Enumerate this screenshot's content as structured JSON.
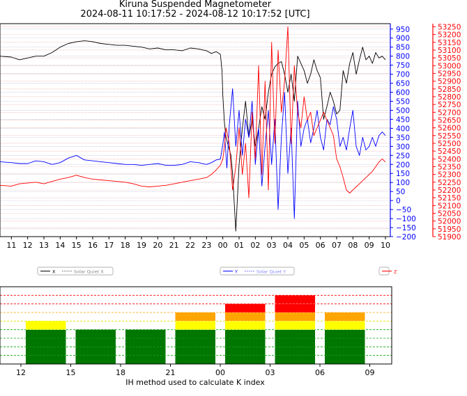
{
  "header": {
    "title": "Kiruna Suspended Magnetometer",
    "subtitle": "2024-08-11 10:17:52 - 2024-08-12 10:17:52 [UTC]"
  },
  "colors": {
    "x_series": "#000000",
    "y_series": "#0000ff",
    "z_series": "#ff0000",
    "k_green": "#007700",
    "k_yellow": "#ffff00",
    "k_orange": "#ffa500",
    "k_red": "#ff0000"
  },
  "chart_data": [
    {
      "type": "line",
      "x_ticks": [
        "11",
        "12",
        "13",
        "14",
        "15",
        "16",
        "17",
        "18",
        "19",
        "20",
        "21",
        "22",
        "23",
        "00",
        "01",
        "02",
        "03",
        "04",
        "05",
        "06",
        "07",
        "08",
        "09",
        "10"
      ],
      "y_left_ticks": [
        950,
        900,
        850,
        800,
        750,
        700,
        650,
        600,
        550,
        500,
        450,
        400,
        350,
        300,
        250,
        200,
        150,
        100,
        50,
        0,
        -50,
        -100,
        -150,
        -200
      ],
      "y_left_range": [
        -200,
        980
      ],
      "y_right_ticks": [
        53250,
        53200,
        53150,
        53100,
        53050,
        53000,
        52950,
        52900,
        52850,
        52800,
        52750,
        52700,
        52650,
        52600,
        52550,
        52500,
        52450,
        52400,
        52350,
        52300,
        52250,
        52200,
        52150,
        52100,
        52050,
        52000,
        51950,
        51900
      ],
      "y_right_range": [
        51900,
        53270
      ],
      "grid": true,
      "legends": [
        {
          "entries": [
            "X",
            "Solar Quiet X"
          ]
        },
        {
          "entries": [
            "Y",
            "Solar Quiet Y"
          ]
        },
        {
          "entries": [
            "Z"
          ]
        }
      ],
      "series": [
        {
          "name": "X",
          "t": [
            10.3,
            11,
            11.5,
            12,
            12.5,
            13,
            13.5,
            14,
            14.5,
            15,
            15.5,
            16,
            16.5,
            17,
            17.5,
            18,
            18.5,
            19,
            19.5,
            20,
            20.5,
            21,
            21.5,
            22,
            22.5,
            23,
            23.3,
            23.6,
            23.85,
            23.95,
            24.0,
            24.1,
            24.2,
            24.35,
            24.5,
            24.6,
            24.8,
            25.0,
            25.2,
            25.4,
            25.6,
            25.8,
            26.0,
            26.2,
            26.4,
            26.6,
            26.8,
            27.0,
            27.2,
            27.4,
            27.6,
            27.8,
            28.0,
            28.2,
            28.4,
            28.6,
            28.8,
            29.0,
            29.2,
            29.4,
            29.6,
            29.8,
            30.0,
            30.2,
            30.4,
            30.6,
            30.8,
            31.0,
            31.2,
            31.4,
            31.6,
            31.8,
            32.0,
            32.2,
            32.4,
            32.6,
            32.8,
            33.0,
            33.2,
            33.4,
            33.6,
            33.8,
            34.0
          ],
          "y": [
            800,
            795,
            780,
            790,
            800,
            800,
            820,
            850,
            870,
            880,
            885,
            880,
            870,
            865,
            860,
            860,
            855,
            850,
            840,
            845,
            835,
            835,
            830,
            845,
            840,
            830,
            815,
            825,
            810,
            720,
            580,
            430,
            350,
            300,
            250,
            150,
            -170,
            200,
            400,
            550,
            350,
            450,
            300,
            400,
            520,
            450,
            600,
            700,
            740,
            760,
            770,
            700,
            600,
            700,
            550,
            800,
            760,
            720,
            650,
            700,
            780,
            720,
            680,
            450,
            520,
            600,
            550,
            480,
            500,
            720,
            650,
            760,
            820,
            700,
            780,
            850,
            780,
            800,
            760,
            820,
            790,
            800,
            780
          ]
        },
        {
          "name": "Y",
          "t": [
            10.3,
            11,
            11.5,
            12,
            12.5,
            13,
            13.5,
            14,
            14.5,
            15,
            15.5,
            16,
            16.5,
            17,
            17.5,
            18,
            18.5,
            19,
            19.5,
            20,
            20.5,
            21,
            21.5,
            22,
            22.5,
            23,
            23.3,
            23.6,
            23.85,
            24.0,
            24.1,
            24.25,
            24.4,
            24.6,
            24.8,
            25.0,
            25.2,
            25.4,
            25.6,
            25.8,
            26.0,
            26.2,
            26.4,
            26.6,
            26.8,
            27.0,
            27.2,
            27.4,
            27.6,
            27.8,
            28.0,
            28.2,
            28.4,
            28.6,
            28.8,
            29.0,
            29.2,
            29.4,
            29.6,
            29.8,
            30.0,
            30.2,
            30.4,
            30.6,
            30.8,
            31.0,
            31.2,
            31.4,
            31.6,
            31.8,
            32.0,
            32.2,
            32.4,
            32.6,
            32.8,
            33.0,
            33.2,
            33.4,
            33.6,
            33.8,
            34.0
          ],
          "y": [
            215,
            210,
            205,
            205,
            220,
            215,
            200,
            210,
            235,
            250,
            225,
            220,
            215,
            210,
            205,
            200,
            200,
            195,
            200,
            205,
            195,
            195,
            200,
            215,
            210,
            200,
            210,
            225,
            230,
            310,
            380,
            180,
            420,
            620,
            300,
            500,
            250,
            450,
            350,
            550,
            200,
            400,
            80,
            300,
            500,
            200,
            450,
            -50,
            350,
            600,
            150,
            400,
            -100,
            550,
            300,
            400,
            450,
            320,
            400,
            500,
            350,
            280,
            450,
            420,
            520,
            450,
            300,
            350,
            280,
            400,
            500,
            300,
            250,
            350,
            280,
            300,
            350,
            300,
            360,
            380,
            360
          ]
        },
        {
          "name": "Z",
          "t": [
            10.3,
            11,
            11.5,
            12,
            12.5,
            13,
            13.5,
            14,
            14.5,
            15,
            15.5,
            16,
            16.5,
            17,
            17.5,
            18,
            18.5,
            19,
            19.5,
            20,
            20.5,
            21,
            21.5,
            22,
            22.5,
            23,
            23.3,
            23.6,
            23.85,
            24.0,
            24.1,
            24.2,
            24.4,
            24.6,
            24.8,
            25.0,
            25.2,
            25.4,
            25.6,
            25.8,
            26.0,
            26.2,
            26.4,
            26.6,
            26.8,
            27.0,
            27.2,
            27.4,
            27.6,
            27.8,
            28.0,
            28.2,
            28.4,
            28.6,
            28.8,
            29.0,
            29.2,
            29.4,
            29.6,
            29.8,
            30.0,
            30.2,
            30.4,
            30.6,
            30.8,
            31.0,
            31.2,
            31.4,
            31.6,
            31.8,
            32.0,
            32.2,
            32.4,
            32.6,
            32.8,
            33.0,
            33.2,
            33.4,
            33.6,
            33.8,
            34.0
          ],
          "y": [
            52230,
            52225,
            52240,
            52245,
            52250,
            52240,
            52255,
            52270,
            52280,
            52295,
            52280,
            52270,
            52265,
            52260,
            52255,
            52250,
            52240,
            52225,
            52220,
            52225,
            52230,
            52240,
            52250,
            52260,
            52270,
            52280,
            52300,
            52330,
            52360,
            52400,
            52480,
            52600,
            52500,
            52200,
            52350,
            52600,
            52300,
            52500,
            52150,
            52700,
            52400,
            53000,
            52300,
            52900,
            52200,
            53150,
            52500,
            53100,
            52700,
            52900,
            53250,
            52500,
            53000,
            52700,
            52600,
            52800,
            52650,
            52700,
            52550,
            52600,
            52650,
            52700,
            52650,
            52600,
            52550,
            52400,
            52350,
            52280,
            52200,
            52180,
            52200,
            52220,
            52240,
            52260,
            52280,
            52300,
            52320,
            52350,
            52380,
            52400,
            52380
          ]
        }
      ]
    },
    {
      "type": "bar",
      "x_ticks": [
        "12",
        "15",
        "18",
        "21",
        "00",
        "03",
        "06",
        "09"
      ],
      "xlabel": "IH method used to calculate K index",
      "ylim": [
        0,
        9
      ],
      "categories": [
        "12-15",
        "15-18",
        "18-21",
        "21-00",
        "00-03",
        "03-06",
        "06-09"
      ],
      "values": [
        5,
        4,
        4,
        6,
        7,
        8,
        6
      ]
    }
  ]
}
